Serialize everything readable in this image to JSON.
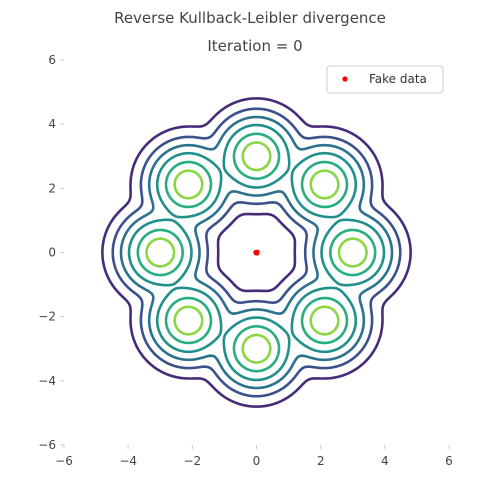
{
  "chart_data": {
    "type": "scatter",
    "title": "Reverse Kullback-Leibler divergence",
    "subtitle": "Iteration = 0",
    "xlim": [
      -6,
      6
    ],
    "ylim": [
      -6,
      6
    ],
    "x_ticks": [
      -6,
      -4,
      -2,
      0,
      2,
      4,
      6
    ],
    "y_ticks": [
      -6,
      -4,
      -2,
      0,
      2,
      4,
      6
    ],
    "x_tick_labels": [
      "−6",
      "−4",
      "−2",
      "0",
      "2",
      "4",
      "6"
    ],
    "y_tick_labels": [
      "−6",
      "−4",
      "−2",
      "0",
      "2",
      "4",
      "6"
    ],
    "grid": false,
    "legend_position": "top-right",
    "series": [
      {
        "name": "Fake data",
        "kind": "scatter",
        "color": "#ff0000",
        "points": [
          [
            0,
            0
          ],
          [
            0.03,
            0.02
          ],
          [
            -0.02,
            -0.02
          ],
          [
            0.02,
            -0.03
          ],
          [
            -0.03,
            0.01
          ]
        ]
      }
    ],
    "density_contours": {
      "description_of_source": "mixture of 8 gaussians on a ring",
      "components": 8,
      "ring_radius": 3,
      "component_std": 0.5,
      "levels": [
        0.00012,
        0.001,
        0.004,
        0.012,
        0.03,
        0.055
      ],
      "colors": [
        "#472c7a",
        "#3b518b",
        "#2c718e",
        "#21908d",
        "#27ad81",
        "#8cd646"
      ]
    }
  }
}
